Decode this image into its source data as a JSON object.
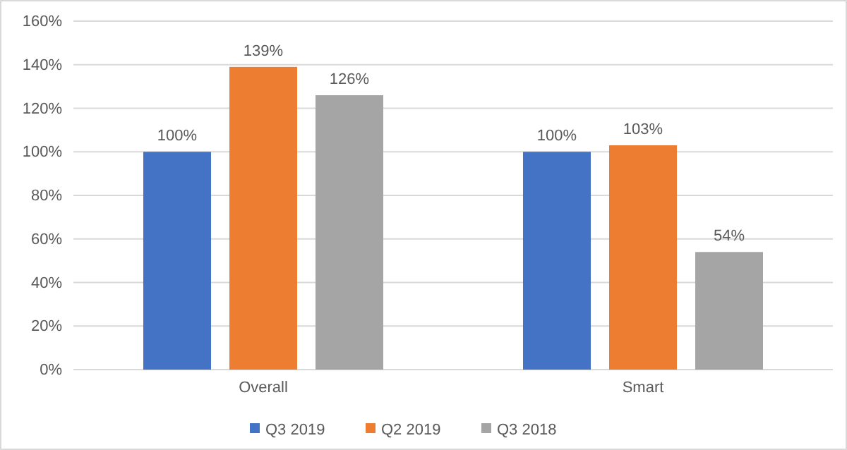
{
  "chart_data": {
    "type": "bar",
    "categories": [
      "Overall",
      "Smart"
    ],
    "series": [
      {
        "name": "Q3 2019",
        "color": "#4472c4",
        "values": [
          100,
          100
        ]
      },
      {
        "name": "Q2 2019",
        "color": "#ed7d31",
        "values": [
          139,
          103
        ]
      },
      {
        "name": "Q3 2018",
        "color": "#a5a5a5",
        "values": [
          126,
          54
        ]
      }
    ],
    "ylim": [
      0,
      160
    ],
    "yticks": [
      {
        "value": 0,
        "label": "0%"
      },
      {
        "value": 20,
        "label": "20%"
      },
      {
        "value": 40,
        "label": "40%"
      },
      {
        "value": 60,
        "label": "60%"
      },
      {
        "value": 80,
        "label": "80%"
      },
      {
        "value": 100,
        "label": "100%"
      },
      {
        "value": 120,
        "label": "120%"
      },
      {
        "value": 140,
        "label": "140%"
      },
      {
        "value": 160,
        "label": "160%"
      }
    ],
    "value_labels": [
      [
        "100%",
        "100%"
      ],
      [
        "139%",
        "103%"
      ],
      [
        "126%",
        "54%"
      ]
    ],
    "grid": "y",
    "legend": "bottom"
  }
}
